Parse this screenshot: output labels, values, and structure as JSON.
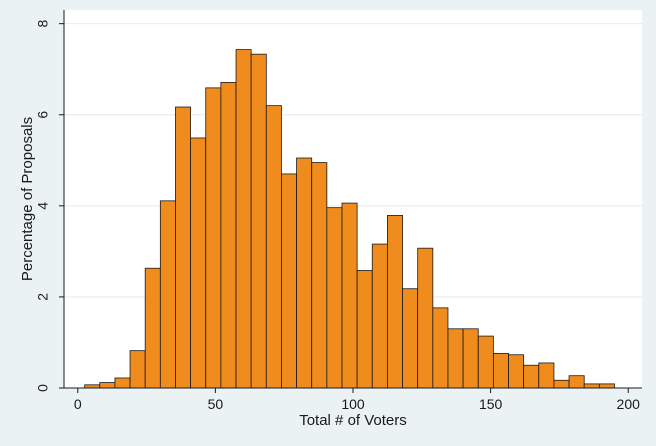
{
  "chart_data": {
    "type": "bar",
    "title": "",
    "xlabel": "Total # of Voters",
    "ylabel": "Percentage of Proposals",
    "xlim": [
      -5,
      205
    ],
    "ylim": [
      0,
      8.3
    ],
    "xticks": [
      0,
      50,
      100,
      150,
      200
    ],
    "yticks": [
      0,
      2,
      4,
      6,
      8
    ],
    "grid": true,
    "legend": "none",
    "bin_width": 5.5,
    "bins": [
      {
        "x0": 2.5,
        "value": 0.07
      },
      {
        "x0": 8.0,
        "value": 0.12
      },
      {
        "x0": 13.5,
        "value": 0.22
      },
      {
        "x0": 19.0,
        "value": 0.82
      },
      {
        "x0": 24.5,
        "value": 2.63
      },
      {
        "x0": 30.0,
        "value": 4.11
      },
      {
        "x0": 35.5,
        "value": 6.17
      },
      {
        "x0": 41.0,
        "value": 5.49
      },
      {
        "x0": 46.5,
        "value": 6.59
      },
      {
        "x0": 52.0,
        "value": 6.71
      },
      {
        "x0": 57.5,
        "value": 7.43
      },
      {
        "x0": 63.0,
        "value": 7.33
      },
      {
        "x0": 68.5,
        "value": 6.2
      },
      {
        "x0": 74.0,
        "value": 4.7
      },
      {
        "x0": 79.5,
        "value": 5.05
      },
      {
        "x0": 85.0,
        "value": 4.95
      },
      {
        "x0": 90.5,
        "value": 3.96
      },
      {
        "x0": 96.0,
        "value": 4.06
      },
      {
        "x0": 101.5,
        "value": 2.58
      },
      {
        "x0": 107.0,
        "value": 3.16
      },
      {
        "x0": 112.5,
        "value": 3.79
      },
      {
        "x0": 118.0,
        "value": 2.18
      },
      {
        "x0": 123.5,
        "value": 3.07
      },
      {
        "x0": 129.0,
        "value": 1.76
      },
      {
        "x0": 134.5,
        "value": 1.3
      },
      {
        "x0": 140.0,
        "value": 1.3
      },
      {
        "x0": 145.5,
        "value": 1.14
      },
      {
        "x0": 151.0,
        "value": 0.76
      },
      {
        "x0": 156.5,
        "value": 0.73
      },
      {
        "x0": 162.0,
        "value": 0.5
      },
      {
        "x0": 167.5,
        "value": 0.55
      },
      {
        "x0": 173.0,
        "value": 0.17
      },
      {
        "x0": 178.5,
        "value": 0.27
      },
      {
        "x0": 184.0,
        "value": 0.09
      },
      {
        "x0": 189.5,
        "value": 0.09
      }
    ],
    "colors": {
      "bar_fill": "#f08c1e",
      "bar_stroke": "#1a1a1a",
      "plot_background": "#ffffff",
      "page_background": "#eaf2f3",
      "grid": "#e3ebec"
    }
  }
}
